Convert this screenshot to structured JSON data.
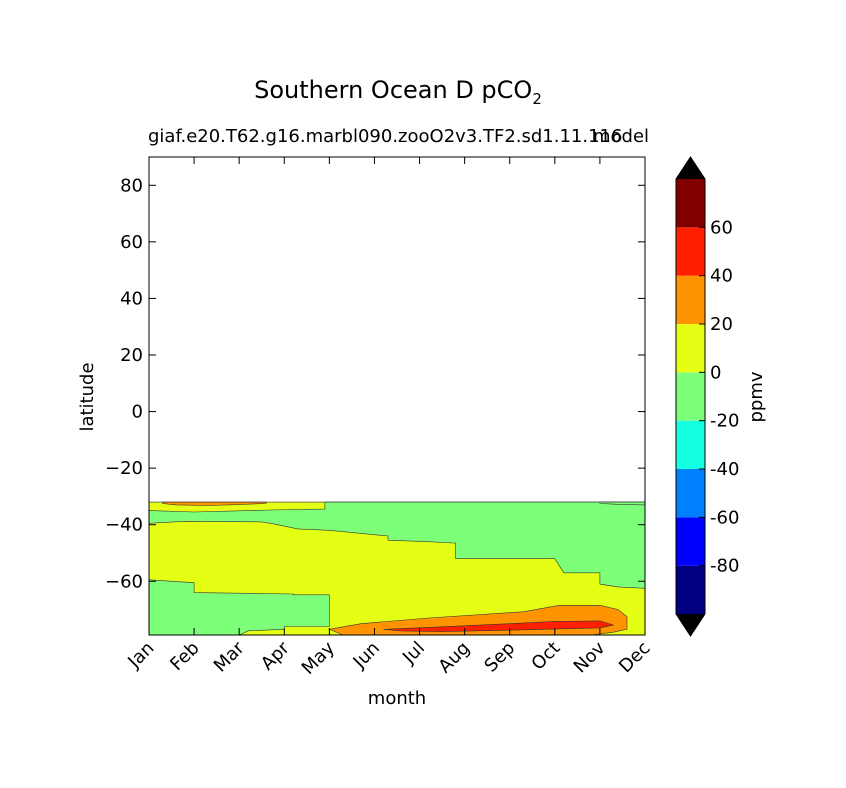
{
  "chart_data": {
    "type": "heatmap",
    "title": "Southern Ocean D pCO",
    "title_subscript": "2",
    "subtitle_left": "giaf.e20.T62.g16.marbl090.zooO2v3.TF2.sd1.11.116",
    "subtitle_right": "model",
    "xlabel": "month",
    "ylabel": "latitude",
    "x_categories": [
      "Jan",
      "Feb",
      "Mar",
      "Apr",
      "May",
      "Jun",
      "Jul",
      "Aug",
      "Sep",
      "Oct",
      "Nov",
      "Dec"
    ],
    "xlim": [
      0,
      11
    ],
    "ylim": [
      -79,
      90
    ],
    "y_ticks": [
      80,
      60,
      40,
      20,
      0,
      -20,
      -40,
      -60
    ],
    "y_tick_labels": [
      "80",
      "60",
      "40",
      "20",
      "0",
      "−20",
      "−40",
      "−60"
    ],
    "data_lat_extent": [
      -79,
      -32
    ],
    "colorbar": {
      "label": "ppmv",
      "levels": [
        -100,
        -80,
        -60,
        -40,
        -20,
        0,
        20,
        40,
        60,
        80
      ],
      "tick_labels": [
        "-80",
        "-60",
        "-40",
        "-20",
        "0",
        "20",
        "40",
        "60"
      ],
      "tick_values": [
        -80,
        -60,
        -40,
        -20,
        0,
        20,
        40,
        60
      ],
      "colors": [
        "#000080",
        "#0000ff",
        "#0080ff",
        "#15ffe1",
        "#7dff7a",
        "#e4ff13",
        "#ff9400",
        "#ff2000",
        "#800000"
      ],
      "under_color": "#000000",
      "over_color": "#000000",
      "extend": "both"
    },
    "contour_regions": [
      {
        "level": "0 to 20",
        "color": "#e4ff13",
        "boundary": [
          [
            0,
            -32
          ],
          [
            11,
            -32
          ],
          [
            11,
            -79
          ],
          [
            0,
            -79
          ]
        ]
      },
      {
        "level": "-20 to 0",
        "color": "#7dff7a",
        "boundary": [
          [
            0,
            -59.5
          ],
          [
            1,
            -60.5
          ],
          [
            1,
            -64
          ],
          [
            3.2,
            -64.5
          ],
          [
            3.2,
            -64.8
          ],
          [
            4.0,
            -64.8
          ],
          [
            4.0,
            -76
          ],
          [
            3.0,
            -76
          ],
          [
            3.0,
            -77
          ],
          [
            2.2,
            -77.5
          ],
          [
            2.0,
            -79
          ],
          [
            0,
            -79
          ]
        ]
      },
      {
        "level": "-20 to 0",
        "color": "#7dff7a",
        "boundary": [
          [
            3.9,
            -32
          ],
          [
            11,
            -32
          ],
          [
            11,
            -62.5
          ],
          [
            10.4,
            -62
          ],
          [
            10,
            -61
          ],
          [
            10,
            -57
          ],
          [
            9.2,
            -57
          ],
          [
            9,
            -52
          ],
          [
            6.8,
            -52
          ],
          [
            6.8,
            -46.5
          ],
          [
            6.2,
            -46
          ],
          [
            5.3,
            -45.5
          ],
          [
            5.3,
            -44
          ],
          [
            4.0,
            -42
          ],
          [
            3.3,
            -41.5
          ],
          [
            2.7,
            -39.5
          ],
          [
            2.5,
            -39
          ],
          [
            0.8,
            -38.8
          ],
          [
            0,
            -39.5
          ],
          [
            0,
            -35
          ],
          [
            1,
            -35.5
          ],
          [
            2.7,
            -34.8
          ],
          [
            3.9,
            -34.5
          ]
        ]
      },
      {
        "level": "-20 to 0",
        "color": "#7dff7a",
        "boundary": [
          [
            10,
            -32
          ],
          [
            11,
            -32
          ],
          [
            11,
            -33
          ],
          [
            10.4,
            -32.8
          ],
          [
            10,
            -32.5
          ]
        ]
      },
      {
        "level": "20 to 40",
        "color": "#ff9400",
        "boundary": [
          [
            0.3,
            -32
          ],
          [
            2.6,
            -32
          ],
          [
            2.6,
            -32.5
          ],
          [
            1.4,
            -33.2
          ],
          [
            0.6,
            -33
          ],
          [
            0.3,
            -32.5
          ]
        ]
      },
      {
        "level": "20 to 40",
        "color": "#ff9400",
        "boundary": [
          [
            4.0,
            -77
          ],
          [
            4.7,
            -75
          ],
          [
            6.2,
            -73
          ],
          [
            8.3,
            -70.8
          ],
          [
            9.1,
            -68.5
          ],
          [
            10,
            -68.5
          ],
          [
            10.4,
            -70
          ],
          [
            10.6,
            -72.5
          ],
          [
            10.6,
            -77
          ],
          [
            10.3,
            -78
          ],
          [
            9.8,
            -79
          ],
          [
            4.3,
            -79
          ]
        ]
      },
      {
        "level": "40 to 60",
        "color": "#ff2000",
        "boundary": [
          [
            5.2,
            -77
          ],
          [
            6.2,
            -76.3
          ],
          [
            8,
            -75
          ],
          [
            9.0,
            -74.2
          ],
          [
            10,
            -74
          ],
          [
            10.3,
            -75.5
          ],
          [
            10.0,
            -76.5
          ],
          [
            8,
            -77.3
          ],
          [
            6.5,
            -77.8
          ],
          [
            5.6,
            -77.6
          ]
        ]
      }
    ]
  }
}
